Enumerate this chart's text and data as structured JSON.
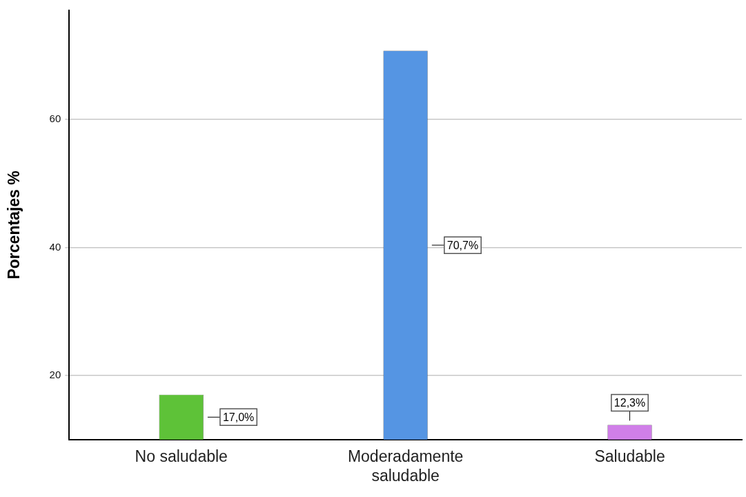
{
  "chart_data": {
    "type": "bar",
    "ylabel": "Porcentajes %",
    "categories": [
      "No saludable",
      "Moderadamente saludable",
      "Saludable"
    ],
    "values": [
      17.0,
      70.7,
      12.3
    ],
    "value_labels": [
      "17,0%",
      "70,7%",
      "12,3%"
    ],
    "colors": [
      "#5ec238",
      "#5595e3",
      "#d07fe8"
    ],
    "ylim": [
      10,
      77
    ],
    "yticks": [
      20,
      40,
      60
    ],
    "grid": "y"
  }
}
